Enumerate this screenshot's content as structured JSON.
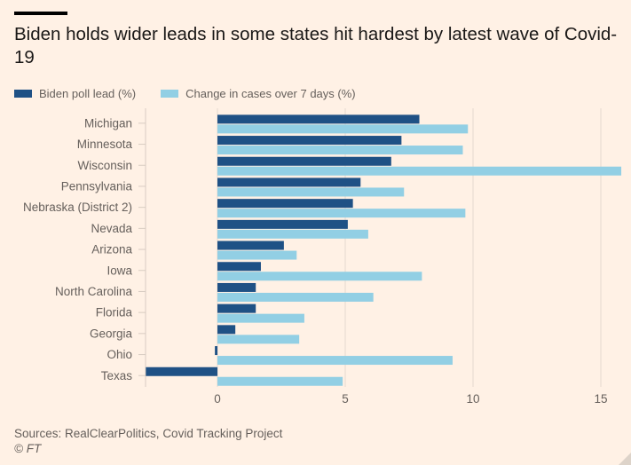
{
  "chart_data": {
    "type": "bar",
    "orientation": "horizontal",
    "title": "Biden holds wider leads in some states hit hardest by latest wave of Covid-19",
    "categories": [
      "Michigan",
      "Minnesota",
      "Wisconsin",
      "Pennsylvania",
      "Nebraska (District 2)",
      "Nevada",
      "Arizona",
      "Iowa",
      "North Carolina",
      "Florida",
      "Georgia",
      "Ohio",
      "Texas"
    ],
    "series": [
      {
        "name": "Biden poll lead (%)",
        "color": "#1f5185",
        "values": [
          7.9,
          7.2,
          6.8,
          5.6,
          5.3,
          5.1,
          2.6,
          1.7,
          1.5,
          1.5,
          0.7,
          -0.1,
          -2.8
        ]
      },
      {
        "name": "Change in cases over 7 days (%)",
        "color": "#92cfe4",
        "values": [
          9.8,
          9.6,
          15.8,
          7.3,
          9.7,
          5.9,
          3.1,
          8.0,
          6.1,
          3.4,
          3.2,
          9.2,
          4.9
        ]
      }
    ],
    "xticks": [
      "0",
      "5",
      "10",
      "15"
    ],
    "xtick_values": [
      0,
      5,
      10,
      15
    ],
    "xlim": [
      -2.8,
      16
    ],
    "xlabel": "",
    "ylabel": "",
    "grid": true,
    "legend_position": "top-left"
  },
  "source": "Sources: RealClearPolitics, Covid Tracking Project",
  "copyright": "© FT"
}
